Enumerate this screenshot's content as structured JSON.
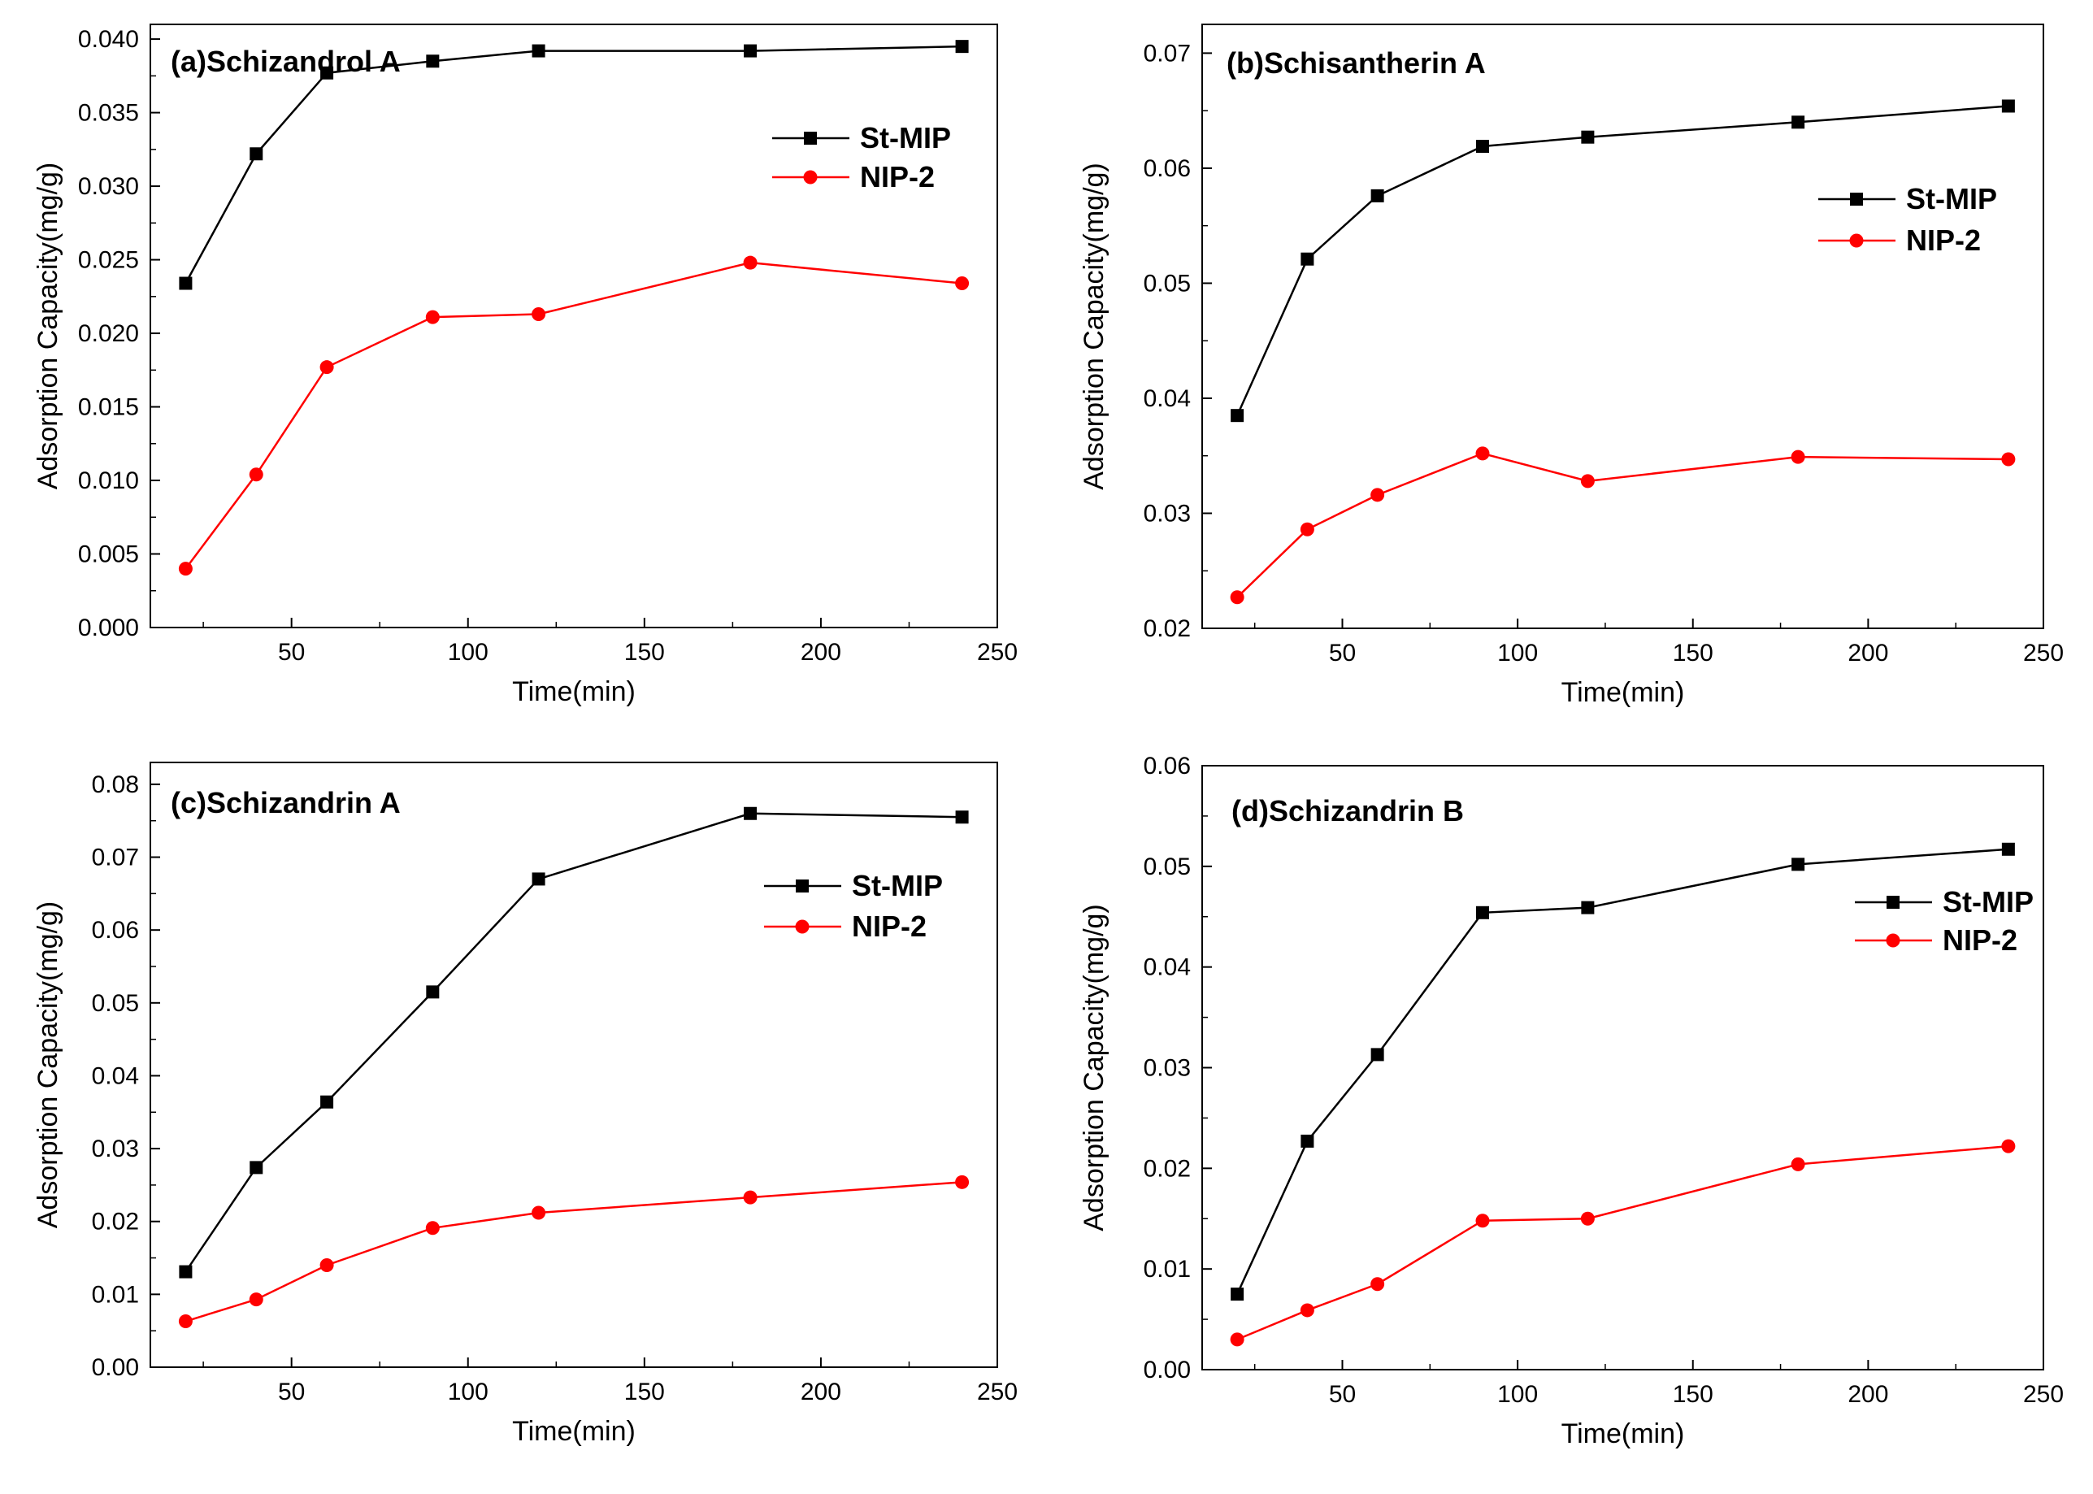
{
  "chart_data": [
    {
      "type": "line",
      "title": "(a)Schizandrol A",
      "xlabel": "Time(min)",
      "ylabel": "Adsorption Capacity(mg/g)",
      "xlim": [
        10,
        250
      ],
      "ylim": [
        0,
        0.041
      ],
      "xticks": [
        50,
        100,
        150,
        200,
        250
      ],
      "xtick_labels": [
        "50",
        "100",
        "150",
        "200",
        "250"
      ],
      "yticks": [
        0,
        0.005,
        0.01,
        0.015,
        0.02,
        0.025,
        0.03,
        0.035,
        0.04
      ],
      "ytick_labels": [
        "0.000",
        "0.005",
        "0.010",
        "0.015",
        "0.020",
        "0.025",
        "0.030",
        "0.035",
        "0.040"
      ],
      "legend_position": "top-right",
      "x": [
        20,
        40,
        60,
        90,
        120,
        180,
        240
      ],
      "series": [
        {
          "name": "St-MIP",
          "color": "#000000",
          "marker": "square",
          "values": [
            0.0234,
            0.0322,
            0.0377,
            0.0385,
            0.0392,
            0.0392,
            0.0395
          ]
        },
        {
          "name": "NIP-2",
          "color": "#ff0000",
          "marker": "circle",
          "values": [
            0.004,
            0.0104,
            0.0177,
            0.0211,
            0.0213,
            0.0248,
            0.0234
          ]
        }
      ]
    },
    {
      "type": "line",
      "title": "(b)Schisantherin A",
      "xlabel": "Time(min)",
      "ylabel": "Adsorption Capacity(mg/g)",
      "xlim": [
        10,
        250
      ],
      "ylim": [
        0.02,
        0.0725
      ],
      "xticks": [
        50,
        100,
        150,
        200,
        250
      ],
      "xtick_labels": [
        "50",
        "100",
        "150",
        "200",
        "250"
      ],
      "yticks": [
        0.02,
        0.03,
        0.04,
        0.05,
        0.06,
        0.07
      ],
      "ytick_labels": [
        "0.02",
        "0.03",
        "0.04",
        "0.05",
        "0.06",
        "0.07"
      ],
      "legend_position": "top-right",
      "x": [
        20,
        40,
        60,
        90,
        120,
        180,
        240
      ],
      "series": [
        {
          "name": "St-MIP",
          "color": "#000000",
          "marker": "square",
          "values": [
            0.0385,
            0.0521,
            0.0576,
            0.0619,
            0.0627,
            0.064,
            0.0654
          ]
        },
        {
          "name": "NIP-2",
          "color": "#ff0000",
          "marker": "circle",
          "values": [
            0.0227,
            0.0286,
            0.0316,
            0.0352,
            0.0328,
            0.0349,
            0.0347
          ]
        }
      ]
    },
    {
      "type": "line",
      "title": "(c)Schizandrin A",
      "xlabel": "Time(min)",
      "ylabel": "Adsorption Capacity(mg/g)",
      "xlim": [
        10,
        250
      ],
      "ylim": [
        0,
        0.083
      ],
      "xticks": [
        50,
        100,
        150,
        200,
        250
      ],
      "xtick_labels": [
        "50",
        "100",
        "150",
        "200",
        "250"
      ],
      "yticks": [
        0,
        0.01,
        0.02,
        0.03,
        0.04,
        0.05,
        0.06,
        0.07,
        0.08
      ],
      "ytick_labels": [
        "0.00",
        "0.01",
        "0.02",
        "0.03",
        "0.04",
        "0.05",
        "0.06",
        "0.07",
        "0.08"
      ],
      "legend_position": "top-right",
      "x": [
        20,
        40,
        60,
        90,
        120,
        180,
        240
      ],
      "series": [
        {
          "name": "St-MIP",
          "color": "#000000",
          "marker": "square",
          "values": [
            0.0131,
            0.0274,
            0.0364,
            0.0515,
            0.067,
            0.076,
            0.0755
          ]
        },
        {
          "name": "NIP-2",
          "color": "#ff0000",
          "marker": "circle",
          "values": [
            0.0063,
            0.0093,
            0.014,
            0.0191,
            0.0212,
            0.0233,
            0.0254
          ]
        }
      ]
    },
    {
      "type": "line",
      "title": "(d)Schizandrin B",
      "xlabel": "Time(min)",
      "ylabel": "Adsorption Capacity(mg/g)",
      "xlim": [
        10,
        250
      ],
      "ylim": [
        0,
        0.06
      ],
      "xticks": [
        50,
        100,
        150,
        200,
        250
      ],
      "xtick_labels": [
        "50",
        "100",
        "150",
        "200",
        "250"
      ],
      "yticks": [
        0,
        0.01,
        0.02,
        0.03,
        0.04,
        0.05,
        0.06
      ],
      "ytick_labels": [
        "0.00",
        "0.01",
        "0.02",
        "0.03",
        "0.04",
        "0.05",
        "0.06"
      ],
      "legend_position": "top-right",
      "x": [
        20,
        40,
        60,
        90,
        120,
        180,
        240
      ],
      "series": [
        {
          "name": "St-MIP",
          "color": "#000000",
          "marker": "square",
          "values": [
            0.0075,
            0.0227,
            0.0313,
            0.0454,
            0.0459,
            0.0502,
            0.0517
          ]
        },
        {
          "name": "NIP-2",
          "color": "#ff0000",
          "marker": "circle",
          "values": [
            0.003,
            0.0059,
            0.0085,
            0.0148,
            0.015,
            0.0204,
            0.0222
          ]
        }
      ]
    }
  ]
}
